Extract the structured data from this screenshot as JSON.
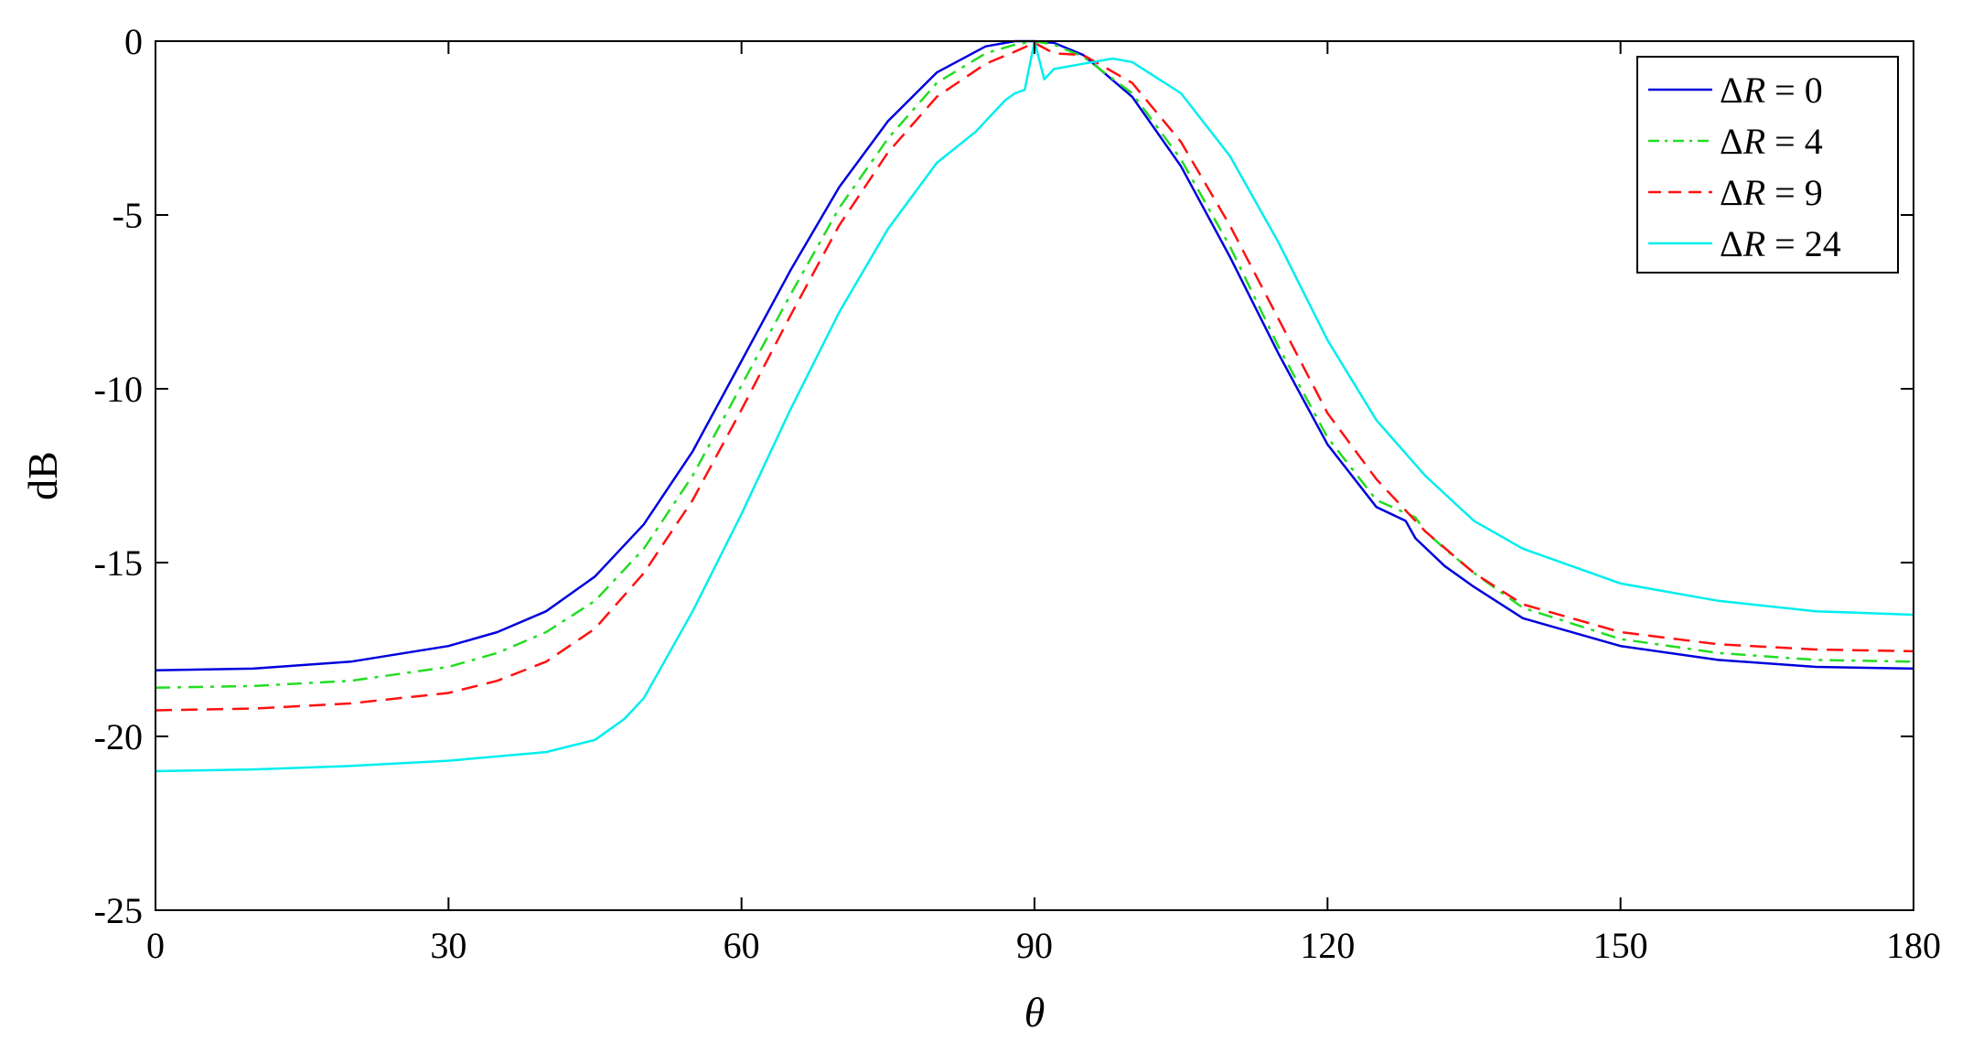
{
  "chart_data": {
    "type": "line",
    "title": "",
    "xlabel": "θ",
    "ylabel": "dB",
    "xlim": [
      0,
      180
    ],
    "ylim": [
      -25,
      0
    ],
    "xticks": [
      0,
      30,
      60,
      90,
      120,
      150,
      180
    ],
    "xtick_labels": [
      "0",
      "30",
      "60",
      "90",
      "120",
      "150",
      "180"
    ],
    "yticks": [
      0,
      -5,
      -10,
      -15,
      -20,
      -25
    ],
    "ytick_labels": [
      "0",
      "-5",
      "-10",
      "-15",
      "-20",
      "-25"
    ],
    "grid": false,
    "box": true,
    "legend_position": "top-right",
    "series": [
      {
        "name": "ΔR = 0",
        "legend_parts": [
          "Δ",
          "R",
          " = 0"
        ],
        "color": "#0000dd",
        "dash": "solid",
        "x": [
          0,
          10,
          20,
          30,
          35,
          40,
          45,
          50,
          55,
          60,
          65,
          70,
          75,
          80,
          85,
          88,
          90,
          92,
          95,
          100,
          105,
          110,
          115,
          120,
          125,
          128,
          129,
          132,
          135,
          140,
          150,
          160,
          170,
          180
        ],
        "y": [
          -18.1,
          -18.05,
          -17.85,
          -17.4,
          -17.0,
          -16.4,
          -15.4,
          -13.9,
          -11.8,
          -9.2,
          -6.6,
          -4.2,
          -2.3,
          -0.9,
          -0.15,
          0.0,
          0.0,
          -0.05,
          -0.4,
          -1.6,
          -3.6,
          -6.2,
          -9.0,
          -11.6,
          -13.4,
          -13.8,
          -14.3,
          -15.1,
          -15.7,
          -16.6,
          -17.4,
          -17.8,
          -18.0,
          -18.05
        ]
      },
      {
        "name": "ΔR = 4",
        "legend_parts": [
          "Δ",
          "R",
          " = 4"
        ],
        "color": "#22dd22",
        "dash": "dashdot",
        "x": [
          0,
          10,
          20,
          30,
          35,
          40,
          45,
          50,
          55,
          60,
          65,
          70,
          75,
          80,
          85,
          88,
          90,
          92,
          95,
          100,
          105,
          110,
          115,
          120,
          125,
          129,
          130,
          132,
          135,
          140,
          150,
          160,
          170,
          180
        ],
        "y": [
          -18.6,
          -18.55,
          -18.4,
          -18.0,
          -17.6,
          -17.0,
          -16.1,
          -14.6,
          -12.5,
          -9.9,
          -7.3,
          -4.8,
          -2.8,
          -1.2,
          -0.35,
          -0.1,
          0.0,
          -0.1,
          -0.45,
          -1.5,
          -3.4,
          -5.9,
          -8.8,
          -11.4,
          -13.2,
          -13.7,
          -14.1,
          -14.6,
          -15.3,
          -16.3,
          -17.2,
          -17.6,
          -17.8,
          -17.85
        ]
      },
      {
        "name": "ΔR = 9",
        "legend_parts": [
          "Δ",
          "R",
          " = 9"
        ],
        "color": "#ff1111",
        "dash": "dashed",
        "x": [
          0,
          10,
          20,
          30,
          35,
          40,
          45,
          50,
          55,
          60,
          65,
          70,
          75,
          80,
          85,
          88,
          90,
          92,
          95,
          100,
          105,
          110,
          115,
          120,
          125,
          130,
          135,
          140,
          150,
          160,
          170,
          180
        ],
        "y": [
          -19.25,
          -19.2,
          -19.05,
          -18.75,
          -18.4,
          -17.85,
          -16.9,
          -15.3,
          -13.2,
          -10.6,
          -7.9,
          -5.3,
          -3.2,
          -1.6,
          -0.65,
          -0.3,
          -0.05,
          -0.35,
          -0.4,
          -1.2,
          -2.9,
          -5.3,
          -8.0,
          -10.7,
          -12.6,
          -14.1,
          -15.3,
          -16.2,
          -17.0,
          -17.35,
          -17.5,
          -17.55
        ]
      },
      {
        "name": "ΔR = 24",
        "legend_parts": [
          "Δ",
          "R",
          " = 24"
        ],
        "color": "#00eeee",
        "dash": "solid",
        "x": [
          0,
          10,
          20,
          30,
          40,
          45,
          48,
          50,
          55,
          60,
          65,
          70,
          75,
          80,
          84,
          86,
          87,
          88,
          89,
          90,
          91,
          92,
          95,
          98,
          100,
          105,
          110,
          115,
          120,
          125,
          130,
          135,
          140,
          150,
          160,
          170,
          180
        ],
        "y": [
          -21.0,
          -20.95,
          -20.85,
          -20.7,
          -20.45,
          -20.1,
          -19.5,
          -18.9,
          -16.4,
          -13.6,
          -10.6,
          -7.8,
          -5.4,
          -3.5,
          -2.6,
          -2.0,
          -1.7,
          -1.5,
          -1.4,
          0.0,
          -1.1,
          -0.8,
          -0.65,
          -0.5,
          -0.6,
          -1.5,
          -3.3,
          -5.8,
          -8.6,
          -10.9,
          -12.5,
          -13.8,
          -14.6,
          -15.6,
          -16.1,
          -16.4,
          -16.5
        ]
      }
    ]
  }
}
